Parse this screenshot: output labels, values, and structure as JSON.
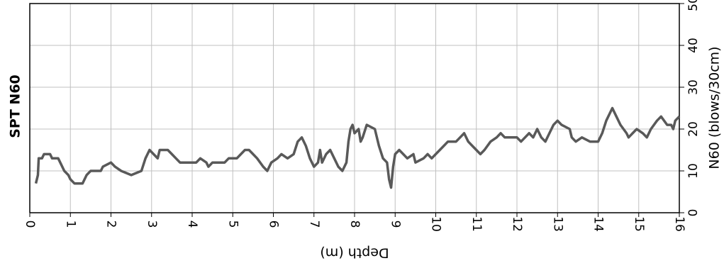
{
  "chart_data": {
    "type": "line",
    "title": "SPT N60",
    "xlabel": "Depth (m)",
    "ylabel": "N60 (blows/30cm)",
    "x": [
      0.15,
      0.2,
      0.22,
      0.3,
      0.35,
      0.5,
      0.55,
      0.7,
      0.75,
      0.85,
      0.95,
      1.0,
      1.1,
      1.3,
      1.35,
      1.4,
      1.5,
      1.75,
      1.8,
      2.0,
      2.1,
      2.25,
      2.5,
      2.75,
      2.85,
      2.95,
      3.05,
      3.15,
      3.2,
      3.4,
      3.5,
      3.6,
      3.7,
      4.1,
      4.2,
      4.35,
      4.4,
      4.5,
      4.8,
      4.9,
      5.1,
      5.2,
      5.3,
      5.4,
      5.5,
      5.6,
      5.75,
      5.85,
      5.95,
      6.1,
      6.2,
      6.35,
      6.5,
      6.6,
      6.7,
      6.8,
      6.9,
      7.0,
      7.1,
      7.15,
      7.2,
      7.3,
      7.4,
      7.5,
      7.6,
      7.7,
      7.8,
      7.85,
      7.9,
      7.95,
      8.0,
      8.1,
      8.15,
      8.2,
      8.3,
      8.5,
      8.6,
      8.7,
      8.8,
      8.85,
      8.9,
      8.95,
      9.0,
      9.1,
      9.2,
      9.3,
      9.45,
      9.5,
      9.7,
      9.8,
      9.9,
      10.0,
      10.1,
      10.2,
      10.3,
      10.5,
      10.6,
      10.7,
      10.8,
      10.9,
      11.0,
      11.1,
      11.2,
      11.35,
      11.5,
      11.6,
      11.7,
      12.0,
      12.1,
      12.2,
      12.3,
      12.4,
      12.5,
      12.6,
      12.7,
      12.8,
      12.9,
      13.0,
      13.1,
      13.3,
      13.35,
      13.45,
      13.6,
      13.8,
      14.0,
      14.1,
      14.2,
      14.3,
      14.35,
      14.45,
      14.55,
      14.7,
      14.75,
      14.85,
      14.95,
      15.1,
      15.2,
      15.3,
      15.45,
      15.55,
      15.7,
      15.8,
      15.85,
      15.9,
      16.0
    ],
    "values": [
      7,
      9,
      13,
      13,
      14,
      14,
      13,
      13,
      12,
      10,
      9,
      8,
      7,
      7,
      8,
      9,
      10,
      10,
      11,
      12,
      11,
      10,
      9,
      10,
      13,
      15,
      14,
      13,
      15,
      15,
      14,
      13,
      12,
      12,
      13,
      12,
      11,
      12,
      12,
      13,
      13,
      14,
      15,
      15,
      14,
      13,
      11,
      10,
      12,
      13,
      14,
      13,
      14,
      17,
      18,
      16,
      13,
      11,
      12,
      15,
      12,
      14,
      15,
      13,
      11,
      10,
      12,
      17,
      20,
      21,
      19,
      20,
      17,
      18,
      21,
      20,
      16,
      13,
      12,
      8,
      6,
      11,
      14,
      15,
      14,
      13,
      14,
      12,
      13,
      14,
      13,
      14,
      15,
      16,
      17,
      17,
      18,
      19,
      17,
      16,
      15,
      14,
      15,
      17,
      18,
      19,
      18,
      18,
      17,
      18,
      19,
      18,
      20,
      18,
      17,
      19,
      21,
      22,
      21,
      20,
      18,
      17,
      18,
      17,
      17,
      19,
      22,
      24,
      25,
      23,
      21,
      19,
      18,
      19,
      20,
      19,
      18,
      20,
      22,
      23,
      21,
      21,
      20,
      22,
      23
    ],
    "color": "#595959",
    "xlim": [
      0,
      16
    ],
    "xticks": [
      0,
      1,
      2,
      3,
      4,
      5,
      6,
      7,
      8,
      9,
      10,
      11,
      12,
      13,
      14,
      15,
      16
    ],
    "ylim": [
      0,
      50
    ],
    "yticks": [
      0,
      10,
      20,
      30,
      40,
      50
    ],
    "grid": true
  }
}
